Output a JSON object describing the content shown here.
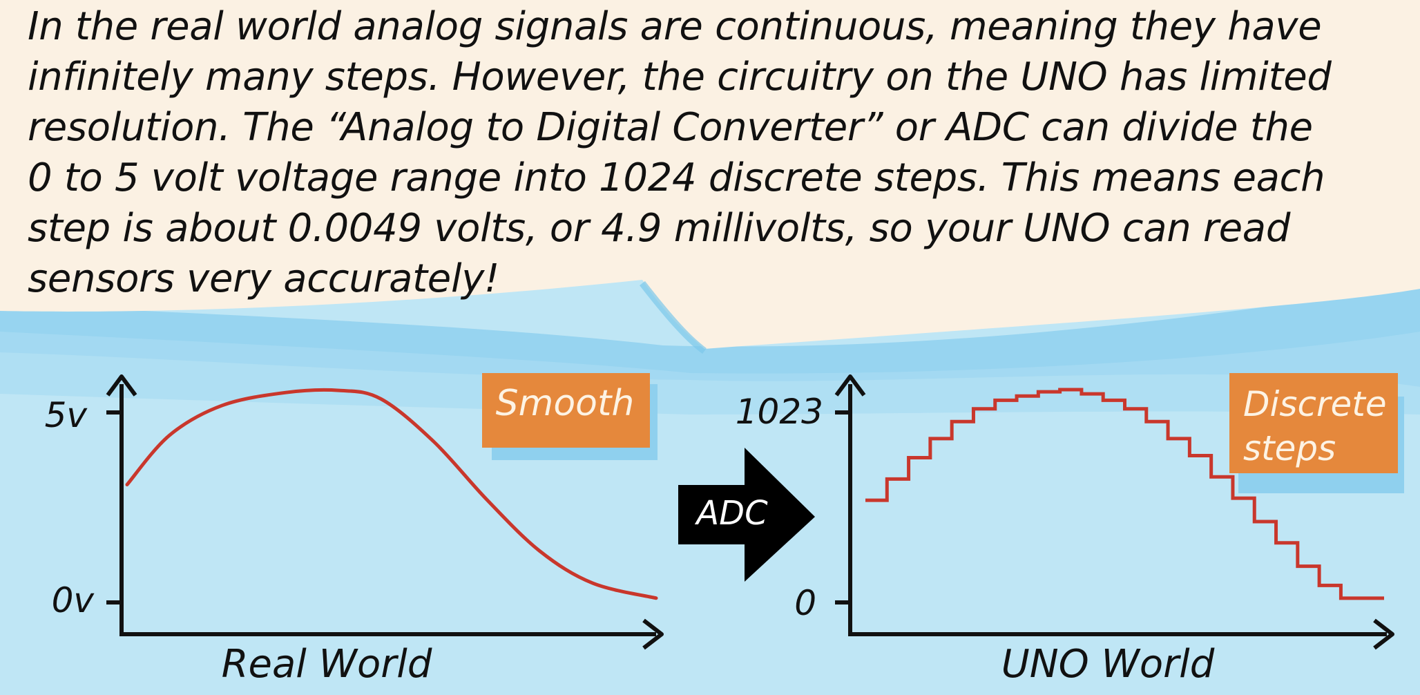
{
  "caption": "In the real world analog signals are continuous, meaning they have\ninfinitely many steps. However, the circuitry on the UNO has limited\nresolution. The “Analog to Digital Converter” or ADC can divide the\n0 to 5 volt voltage range into 1024 discrete steps. This means each\nstep is about 0.0049 volts, or 4.9 millivolts, so your UNO can read\nsensors very accurately!",
  "left_graph": {
    "y_max_label": "5v",
    "y_min_label": "0v",
    "x_label": "Real World",
    "badge": "Smooth",
    "curve": [
      [
        0,
        0.55
      ],
      [
        0.08,
        0.78
      ],
      [
        0.18,
        0.92
      ],
      [
        0.3,
        0.98
      ],
      [
        0.4,
        0.99
      ],
      [
        0.48,
        0.95
      ],
      [
        0.58,
        0.75
      ],
      [
        0.68,
        0.48
      ],
      [
        0.78,
        0.24
      ],
      [
        0.88,
        0.09
      ],
      [
        1,
        0.02
      ]
    ]
  },
  "arrow_label": "ADC",
  "right_graph": {
    "y_max_label": "1023",
    "y_min_label": "0",
    "x_label": "UNO World",
    "badge_lines": [
      "Discrete",
      "steps"
    ],
    "steps": [
      0.48,
      0.58,
      0.68,
      0.77,
      0.85,
      0.91,
      0.95,
      0.97,
      0.99,
      1.0,
      0.98,
      0.95,
      0.91,
      0.85,
      0.77,
      0.69,
      0.59,
      0.49,
      0.38,
      0.28,
      0.17,
      0.08,
      0.02,
      0.02
    ]
  },
  "colors": {
    "cream": "#fbf1e3",
    "sky": "#bfe6f5",
    "wash": "#8fd0ee",
    "curve": "#c9372c",
    "badge": "#e5883c",
    "badge_text": "#fdf3e4",
    "ink": "#111111"
  }
}
